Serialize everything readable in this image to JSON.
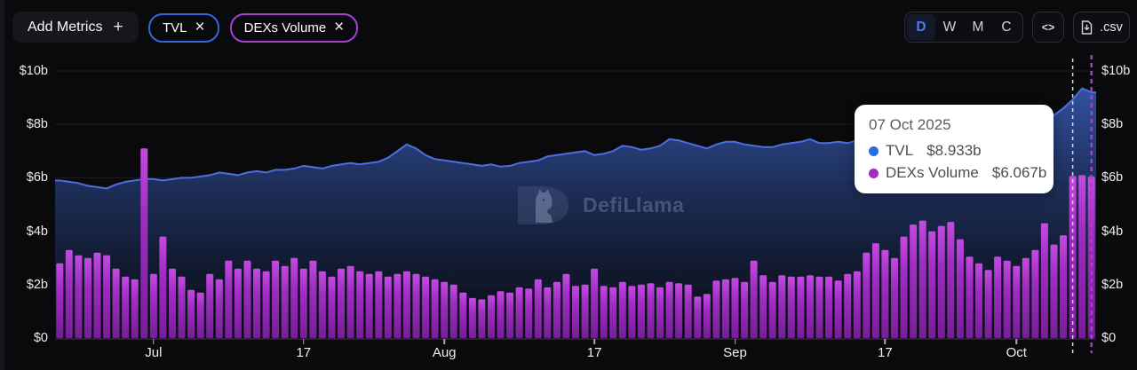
{
  "header": {
    "add_metrics_label": "Add Metrics",
    "add_metrics_plus": "+",
    "metrics": [
      {
        "label": "TVL",
        "remove_icon": "×",
        "border_color": "#3566da"
      },
      {
        "label": "DEXs Volume",
        "remove_icon": "×",
        "border_color": "#a83fd2"
      }
    ],
    "interval_buttons": [
      {
        "label": "D",
        "active": true
      },
      {
        "label": "W",
        "active": false
      },
      {
        "label": "M",
        "active": false
      },
      {
        "label": "C",
        "active": false
      }
    ],
    "embed_label": "<>",
    "csv_label": ".csv"
  },
  "tooltip": {
    "date": "07 Oct 2025",
    "rows": [
      {
        "name": "TVL",
        "value": "$8.933b",
        "color": "#2f6bdc"
      },
      {
        "name": "DEXs Volume",
        "value": "$6.067b",
        "color": "#a02cc0"
      }
    ]
  },
  "watermark": {
    "text": "DefiLlama"
  },
  "chart_data": {
    "type": "mixed",
    "x_start_date": "2025-06-21",
    "x_end_date": "2025-10-09",
    "x_unit": "day",
    "ylim": [
      0,
      10
    ],
    "grid": "horizontal",
    "legend_position": "none",
    "y_ticks": [
      {
        "value": 0,
        "label": "$0"
      },
      {
        "value": 2,
        "label": "$2b"
      },
      {
        "value": 4,
        "label": "$4b"
      },
      {
        "value": 6,
        "label": "$6b"
      },
      {
        "value": 8,
        "label": "$8b"
      },
      {
        "value": 10,
        "label": "$10b"
      }
    ],
    "x_tick_labels": [
      {
        "label": "Jul",
        "index": 10
      },
      {
        "label": "17",
        "index": 26
      },
      {
        "label": "Aug",
        "index": 41
      },
      {
        "label": "17",
        "index": 57
      },
      {
        "label": "Sep",
        "index": 72
      },
      {
        "label": "17",
        "index": 88
      },
      {
        "label": "Oct",
        "index": 102
      }
    ],
    "highlight_index": 108,
    "current_index": 110,
    "series": [
      {
        "name": "TVL",
        "type": "line",
        "color": "#4c6fe0",
        "unit": "$b",
        "values": [
          5.9,
          5.85,
          5.8,
          5.7,
          5.65,
          5.6,
          5.75,
          5.85,
          5.9,
          5.95,
          5.95,
          5.9,
          5.95,
          6.0,
          6.0,
          6.05,
          6.1,
          6.2,
          6.15,
          6.1,
          6.2,
          6.25,
          6.2,
          6.3,
          6.3,
          6.35,
          6.45,
          6.4,
          6.35,
          6.45,
          6.5,
          6.55,
          6.5,
          6.55,
          6.6,
          6.75,
          7.0,
          7.25,
          7.1,
          6.85,
          6.7,
          6.65,
          6.6,
          6.55,
          6.5,
          6.45,
          6.5,
          6.42,
          6.45,
          6.55,
          6.6,
          6.65,
          6.8,
          6.85,
          6.9,
          6.95,
          7.0,
          6.85,
          6.9,
          7.0,
          7.2,
          7.15,
          7.05,
          7.1,
          7.2,
          7.45,
          7.4,
          7.3,
          7.2,
          7.1,
          7.25,
          7.35,
          7.35,
          7.25,
          7.2,
          7.15,
          7.15,
          7.25,
          7.3,
          7.35,
          7.45,
          7.3,
          7.3,
          7.35,
          7.3,
          7.4,
          7.5,
          7.4,
          7.4,
          7.45,
          7.45,
          7.5,
          7.45,
          7.55,
          7.5,
          7.6,
          7.55,
          7.5,
          7.45,
          7.55,
          7.6,
          7.65,
          7.7,
          7.75,
          7.9,
          8.1,
          8.35,
          8.6,
          8.933,
          9.35,
          9.2
        ]
      },
      {
        "name": "DEXs Volume",
        "type": "bar",
        "color": "#a82cc8",
        "unit": "$b",
        "values": [
          2.8,
          3.3,
          3.1,
          3.0,
          3.2,
          3.1,
          2.6,
          2.3,
          2.2,
          7.1,
          2.4,
          3.8,
          2.6,
          2.3,
          1.8,
          1.7,
          2.4,
          2.2,
          2.9,
          2.6,
          2.9,
          2.6,
          2.5,
          2.9,
          2.7,
          3.0,
          2.6,
          2.9,
          2.5,
          2.3,
          2.6,
          2.7,
          2.5,
          2.4,
          2.5,
          2.3,
          2.4,
          2.5,
          2.4,
          2.3,
          2.2,
          2.1,
          2.0,
          1.7,
          1.5,
          1.45,
          1.6,
          1.75,
          1.7,
          1.9,
          1.85,
          2.2,
          1.9,
          2.1,
          2.4,
          1.95,
          2.0,
          2.6,
          1.95,
          1.9,
          2.1,
          1.95,
          2.0,
          2.05,
          1.9,
          2.1,
          2.05,
          2.0,
          1.55,
          1.65,
          2.15,
          2.2,
          2.25,
          2.1,
          2.9,
          2.35,
          2.1,
          2.35,
          2.3,
          2.3,
          2.35,
          2.3,
          2.3,
          2.15,
          2.4,
          2.5,
          3.2,
          3.55,
          3.3,
          3.0,
          3.8,
          4.25,
          4.4,
          4.0,
          4.2,
          4.35,
          3.7,
          3.05,
          2.8,
          2.55,
          3.05,
          2.9,
          2.7,
          3.0,
          3.3,
          4.3,
          3.5,
          3.85,
          6.067,
          6.1,
          6.05
        ]
      }
    ]
  }
}
